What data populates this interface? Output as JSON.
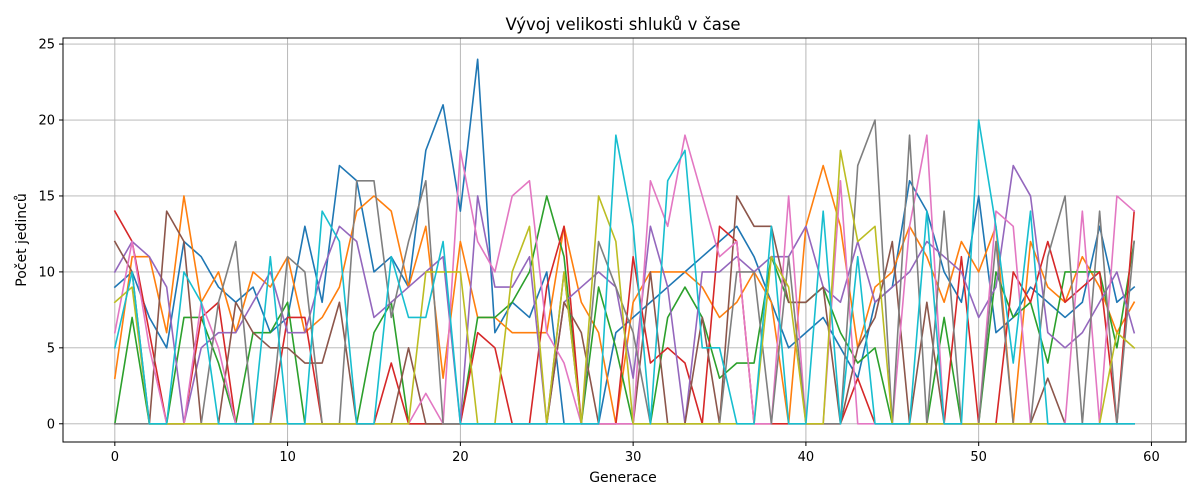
{
  "chart_data": {
    "type": "line",
    "title": "Vývoj velikosti shluků v čase",
    "xlabel": "Generace",
    "ylabel": "Počet jedinců",
    "xlim": [
      -3,
      62
    ],
    "ylim": [
      -1.2,
      25.4
    ],
    "xticks": [
      0,
      10,
      20,
      30,
      40,
      50,
      60
    ],
    "yticks": [
      0,
      5,
      10,
      15,
      20,
      25
    ],
    "grid": true,
    "colors": [
      "#1f77b4",
      "#ff7f0e",
      "#2ca02c",
      "#d62728",
      "#9467bd",
      "#8c564b",
      "#e377c2",
      "#7f7f7f",
      "#bcbd22",
      "#17becf"
    ],
    "series": [
      {
        "values": [
          9,
          10,
          7,
          5,
          12,
          11,
          9,
          8,
          9,
          6,
          7,
          13,
          8,
          17,
          16,
          10,
          11,
          9,
          18,
          21,
          14,
          24,
          6,
          8,
          7,
          10,
          0,
          0,
          0,
          6,
          7,
          8,
          9,
          10,
          11,
          12,
          13,
          11,
          8,
          5,
          6,
          7,
          5,
          3,
          8,
          9,
          16,
          14,
          10,
          8,
          15,
          6,
          7,
          9,
          8,
          7,
          8,
          13,
          8,
          9
        ]
      },
      {
        "values": [
          3,
          11,
          11,
          6,
          15,
          8,
          10,
          6,
          10,
          9,
          11,
          6,
          7,
          9,
          14,
          15,
          14,
          9,
          13,
          3,
          12,
          7,
          7,
          6,
          6,
          6,
          13,
          8,
          6,
          0,
          8,
          10,
          10,
          10,
          9,
          7,
          8,
          10,
          8,
          0,
          13,
          17,
          13,
          5,
          9,
          10,
          13,
          11,
          8,
          12,
          10,
          13,
          0,
          12,
          9,
          8,
          11,
          9,
          6,
          8
        ]
      },
      {
        "values": [
          0,
          7,
          0,
          0,
          7,
          7,
          4,
          0,
          6,
          6,
          8,
          0,
          0,
          0,
          0,
          6,
          8,
          0,
          0,
          0,
          0,
          7,
          7,
          8,
          10,
          15,
          11,
          0,
          9,
          5,
          0,
          0,
          7,
          9,
          7,
          3,
          4,
          4,
          11,
          8,
          8,
          9,
          6,
          4,
          5,
          0,
          0,
          0,
          7,
          0,
          0,
          10,
          7,
          8,
          4,
          10,
          10,
          10,
          5,
          12
        ]
      },
      {
        "values": [
          14,
          12,
          6,
          0,
          0,
          7,
          8,
          0,
          0,
          0,
          7,
          7,
          0,
          0,
          0,
          0,
          4,
          0,
          0,
          0,
          0,
          6,
          5,
          0,
          0,
          9,
          13,
          0,
          0,
          0,
          11,
          4,
          5,
          4,
          0,
          13,
          12,
          0,
          0,
          0,
          0,
          0,
          0,
          3,
          0,
          0,
          0,
          0,
          0,
          11,
          0,
          0,
          10,
          8,
          12,
          8,
          9,
          10,
          0,
          14
        ]
      },
      {
        "values": [
          10,
          12,
          11,
          9,
          0,
          5,
          6,
          6,
          8,
          10,
          6,
          6,
          10,
          13,
          12,
          7,
          8,
          9,
          10,
          11,
          0,
          15,
          9,
          9,
          11,
          0,
          8,
          9,
          10,
          9,
          3,
          13,
          9,
          0,
          10,
          10,
          11,
          10,
          11,
          11,
          13,
          9,
          8,
          12,
          8,
          9,
          10,
          12,
          11,
          10,
          7,
          9,
          17,
          15,
          6,
          5,
          6,
          8,
          10,
          6
        ]
      },
      {
        "values": [
          12,
          10,
          0,
          14,
          12,
          0,
          0,
          8,
          6,
          5,
          5,
          4,
          4,
          8,
          0,
          0,
          0,
          5,
          0,
          0,
          0,
          0,
          0,
          0,
          0,
          0,
          8,
          6,
          0,
          0,
          0,
          10,
          0,
          0,
          7,
          0,
          15,
          13,
          13,
          8,
          8,
          9,
          0,
          5,
          7,
          12,
          0,
          8,
          0,
          0,
          0,
          0,
          0,
          0,
          3,
          0,
          0,
          0,
          0,
          0
        ]
      },
      {
        "values": [
          6,
          12,
          5,
          0,
          0,
          8,
          5,
          0,
          0,
          0,
          0,
          0,
          0,
          0,
          0,
          0,
          0,
          0,
          2,
          0,
          18,
          12,
          10,
          15,
          16,
          6,
          4,
          0,
          0,
          0,
          0,
          16,
          13,
          19,
          15,
          11,
          12,
          0,
          0,
          15,
          0,
          0,
          16,
          0,
          0,
          0,
          13,
          19,
          0,
          0,
          0,
          14,
          13,
          0,
          0,
          0,
          14,
          0,
          15,
          14
        ]
      },
      {
        "values": [
          0,
          0,
          0,
          0,
          0,
          0,
          8,
          12,
          0,
          0,
          11,
          10,
          0,
          0,
          16,
          16,
          7,
          12,
          16,
          0,
          0,
          0,
          0,
          0,
          0,
          0,
          10,
          0,
          12,
          9,
          6,
          0,
          0,
          0,
          0,
          0,
          10,
          10,
          0,
          11,
          0,
          0,
          0,
          17,
          20,
          0,
          19,
          0,
          14,
          0,
          0,
          12,
          0,
          0,
          11,
          15,
          0,
          14,
          0,
          12
        ]
      },
      {
        "values": [
          8,
          9,
          0,
          0,
          0,
          0,
          0,
          0,
          0,
          0,
          0,
          0,
          0,
          0,
          0,
          0,
          0,
          0,
          10,
          10,
          10,
          0,
          0,
          10,
          13,
          0,
          10,
          0,
          15,
          12,
          0,
          0,
          0,
          0,
          0,
          0,
          0,
          0,
          11,
          9,
          0,
          0,
          18,
          12,
          13,
          0,
          0,
          0,
          0,
          0,
          0,
          0,
          0,
          0,
          0,
          0,
          0,
          0,
          6,
          5
        ]
      },
      {
        "values": [
          5,
          10,
          0,
          0,
          10,
          8,
          0,
          0,
          0,
          11,
          0,
          0,
          14,
          12,
          0,
          0,
          11,
          7,
          7,
          12,
          0,
          0,
          0,
          0,
          0,
          0,
          0,
          0,
          0,
          19,
          13,
          0,
          16,
          18,
          5,
          5,
          0,
          0,
          13,
          0,
          0,
          14,
          0,
          11,
          0,
          0,
          0,
          14,
          0,
          0,
          20,
          13,
          4,
          14,
          0,
          0,
          0,
          0,
          0,
          0
        ]
      }
    ]
  }
}
